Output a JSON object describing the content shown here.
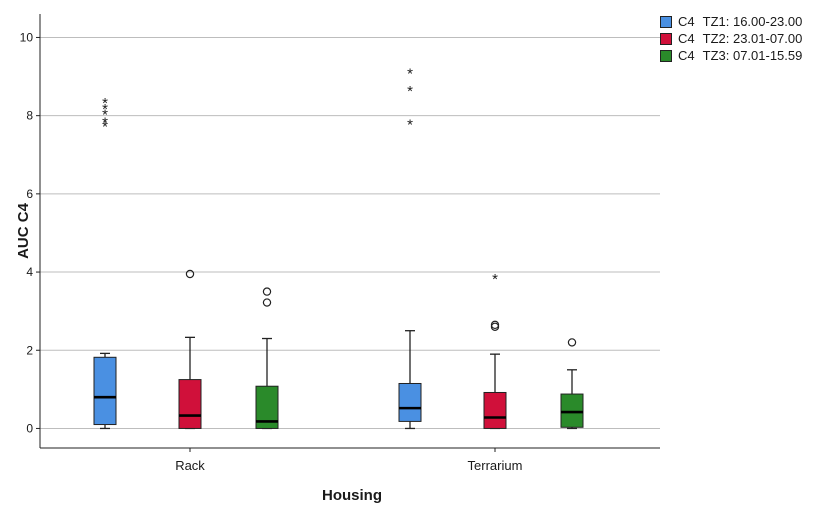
{
  "chart_data": {
    "type": "boxplot",
    "xlabel": "Housing",
    "ylabel": "AUC C4",
    "ylim": [
      -0.5,
      10.6
    ],
    "yticks": [
      0,
      2,
      4,
      6,
      8,
      10
    ],
    "grid": "horizontal",
    "legend_position": "top-right",
    "categories": [
      "Rack",
      "Terrarium"
    ],
    "series": [
      {
        "var": "C4",
        "name": "TZ1: 16.00-23.00",
        "color": "#4a90e2",
        "boxes": [
          {
            "min": 0.0,
            "q1": 0.1,
            "median": 0.8,
            "q3": 1.82,
            "max": 1.92,
            "outliers": [],
            "extremes": [
              7.75,
              7.85,
              8.05,
              8.2,
              8.35
            ]
          },
          {
            "min": 0.0,
            "q1": 0.18,
            "median": 0.52,
            "q3": 1.15,
            "max": 2.5,
            "outliers": [],
            "extremes": [
              7.8,
              8.65,
              9.1
            ]
          }
        ]
      },
      {
        "var": "C4",
        "name": "TZ2: 23.01-07.00",
        "color": "#d0103a",
        "boxes": [
          {
            "min": 0.0,
            "q1": 0.0,
            "median": 0.33,
            "q3": 1.25,
            "max": 2.33,
            "outliers": [
              3.95
            ],
            "extremes": []
          },
          {
            "min": 0.0,
            "q1": 0.0,
            "median": 0.28,
            "q3": 0.92,
            "max": 1.9,
            "outliers": [
              2.6,
              2.65
            ],
            "extremes": [
              3.85
            ]
          }
        ]
      },
      {
        "var": "C4",
        "name": "TZ3: 07.01-15.59",
        "color": "#2a8a2a",
        "boxes": [
          {
            "min": 0.0,
            "q1": 0.0,
            "median": 0.18,
            "q3": 1.08,
            "max": 2.3,
            "outliers": [
              3.22,
              3.5
            ],
            "extremes": []
          },
          {
            "min": 0.0,
            "q1": 0.03,
            "median": 0.42,
            "q3": 0.88,
            "max": 1.5,
            "outliers": [
              2.2
            ],
            "extremes": []
          }
        ]
      }
    ]
  }
}
